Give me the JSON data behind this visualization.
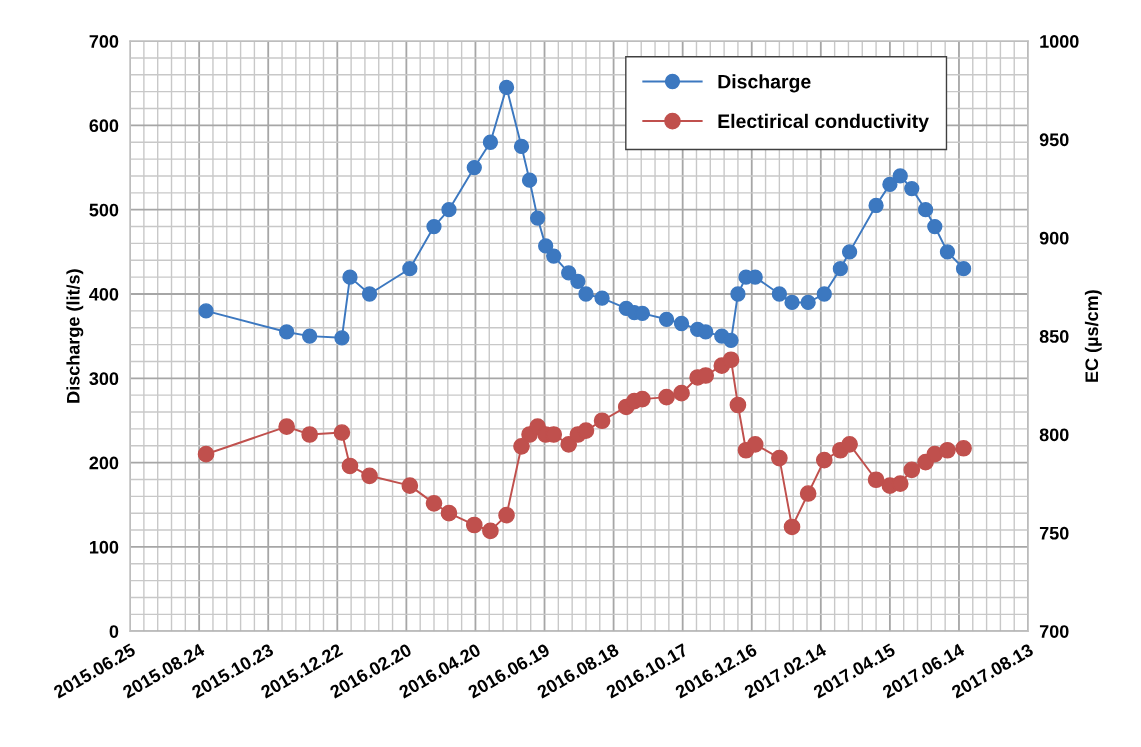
{
  "chart_data": {
    "type": "line",
    "xlabel": null,
    "ylabel": "Discharge (lit/s)",
    "y2label": "EC (µs/cm)",
    "x": [
      "2015-08-30",
      "2015-11-08",
      "2015-11-28",
      "2015-12-26",
      "2016-01-02",
      "2016-01-19",
      "2016-02-23",
      "2016-03-15",
      "2016-03-28",
      "2016-04-19",
      "2016-05-03",
      "2016-05-17",
      "2016-05-30",
      "2016-06-06",
      "2016-06-13",
      "2016-06-20",
      "2016-06-27",
      "2016-07-10",
      "2016-07-18",
      "2016-07-25",
      "2016-08-08",
      "2016-08-29",
      "2016-09-05",
      "2016-09-12",
      "2016-10-03",
      "2016-10-16",
      "2016-10-30",
      "2016-11-06",
      "2016-11-20",
      "2016-11-28",
      "2016-12-04",
      "2016-12-11",
      "2016-12-19",
      "2017-01-09",
      "2017-01-20",
      "2017-02-03",
      "2017-02-17",
      "2017-03-03",
      "2017-03-11",
      "2017-04-03",
      "2017-04-15",
      "2017-04-24",
      "2017-05-04",
      "2017-05-16",
      "2017-05-24",
      "2017-06-04",
      "2017-06-18"
    ],
    "series": [
      {
        "name": "Discharge",
        "color": "#3c78c0",
        "values": [
          380,
          355,
          350,
          348,
          420,
          400,
          430,
          480,
          500,
          550,
          580,
          645,
          575,
          535,
          490,
          457,
          445,
          425,
          415,
          400,
          395,
          383,
          378,
          377,
          370,
          365,
          358,
          355,
          350,
          345,
          400,
          420,
          420,
          400,
          390,
          390,
          400,
          430,
          450,
          505,
          530,
          540,
          525,
          500,
          480,
          450,
          430
        ]
      },
      {
        "name": "Electirical conductivity",
        "color": "#c0504d",
        "axis": "y2",
        "values": [
          790,
          804,
          800,
          801,
          784,
          779,
          774,
          765,
          760,
          754,
          751,
          759,
          794,
          800,
          804,
          800,
          800,
          795,
          800,
          802,
          807,
          814,
          817,
          818,
          819,
          821,
          829,
          830,
          835,
          838,
          815,
          792,
          795,
          788,
          753,
          770,
          787,
          792,
          795,
          777,
          774,
          775,
          782,
          786,
          790,
          792,
          793
        ]
      }
    ],
    "xlim": [
      "2015-06-25",
      "2017-08-13"
    ],
    "xticks": [
      {
        "value": "2015-06-25",
        "label": "2015.06.25"
      },
      {
        "value": "2015-08-24",
        "label": "2015.08.24"
      },
      {
        "value": "2015-10-23",
        "label": "2015.10.23"
      },
      {
        "value": "2015-12-22",
        "label": "2015.12.22"
      },
      {
        "value": "2016-02-20",
        "label": "2016.02.20"
      },
      {
        "value": "2016-04-20",
        "label": "2016.04.20"
      },
      {
        "value": "2016-06-19",
        "label": "2016.06.19"
      },
      {
        "value": "2016-08-18",
        "label": "2016.08.18"
      },
      {
        "value": "2016-10-17",
        "label": "2016.10.17"
      },
      {
        "value": "2016-12-16",
        "label": "2016.12.16"
      },
      {
        "value": "2017-02-14",
        "label": "2017.02.14"
      },
      {
        "value": "2017-04-15",
        "label": "2017.04.15"
      },
      {
        "value": "2017-06-14",
        "label": "2017.06.14"
      },
      {
        "value": "2017-08-13",
        "label": "2017.08.13"
      }
    ],
    "ylim": [
      0,
      700
    ],
    "yticks": [
      0,
      100,
      200,
      300,
      400,
      500,
      600,
      700
    ],
    "y2lim": [
      700,
      1000
    ],
    "y2ticks": [
      700,
      750,
      800,
      850,
      900,
      950,
      1000
    ],
    "grid": true,
    "legend": "top right",
    "marker": "circle",
    "line_style": "solid"
  }
}
